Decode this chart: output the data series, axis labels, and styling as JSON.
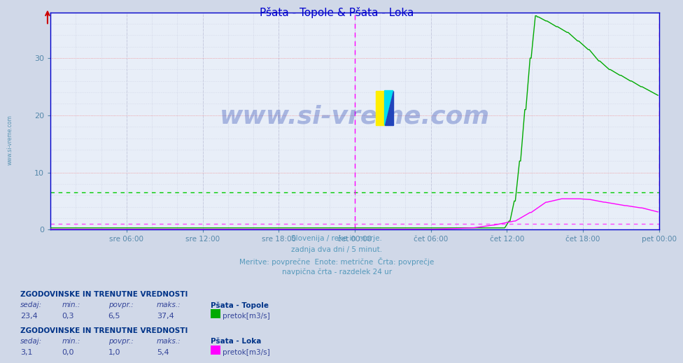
{
  "title": "Pšata - Topole & Pšata - Loka",
  "title_color": "#0000cc",
  "bg_color": "#d0d8e8",
  "plot_bg_color": "#e8eef8",
  "grid_color_major": "#ff9999",
  "grid_color_minor": "#c8cce0",
  "ylim": [
    0,
    38
  ],
  "yticks": [
    0,
    10,
    20,
    30
  ],
  "num_points": 576,
  "xlabel_color": "#5588aa",
  "xtick_labels": [
    "sre 06:00",
    "sre 12:00",
    "sre 18:00",
    "čet 00:00",
    "čet 06:00",
    "čet 12:00",
    "čet 18:00",
    "pet 00:00"
  ],
  "xtick_positions": [
    72,
    144,
    216,
    288,
    360,
    432,
    504,
    576
  ],
  "vline_positions": [
    288,
    576
  ],
  "vline_color": "#ff00ff",
  "avg_line_topole": 6.5,
  "avg_line_loka": 1.0,
  "avg_line_topole_color": "#00cc00",
  "avg_line_loka_color": "#ff44ff",
  "line_topole_color": "#00aa00",
  "line_loka_color": "#ff00ff",
  "axis_color": "#0000cc",
  "arrow_color": "#cc0000",
  "watermark": "www.si-vreme.com",
  "subtitle_lines": [
    "Slovenija / reke in morje.",
    "zadnja dva dni / 5 minut.",
    "Meritve: povprečne  Enote: metrične  Črta: povprečje",
    "navpična črta - razdelek 24 ur"
  ],
  "subtitle_color": "#5599bb",
  "legend_color": "#334499"
}
